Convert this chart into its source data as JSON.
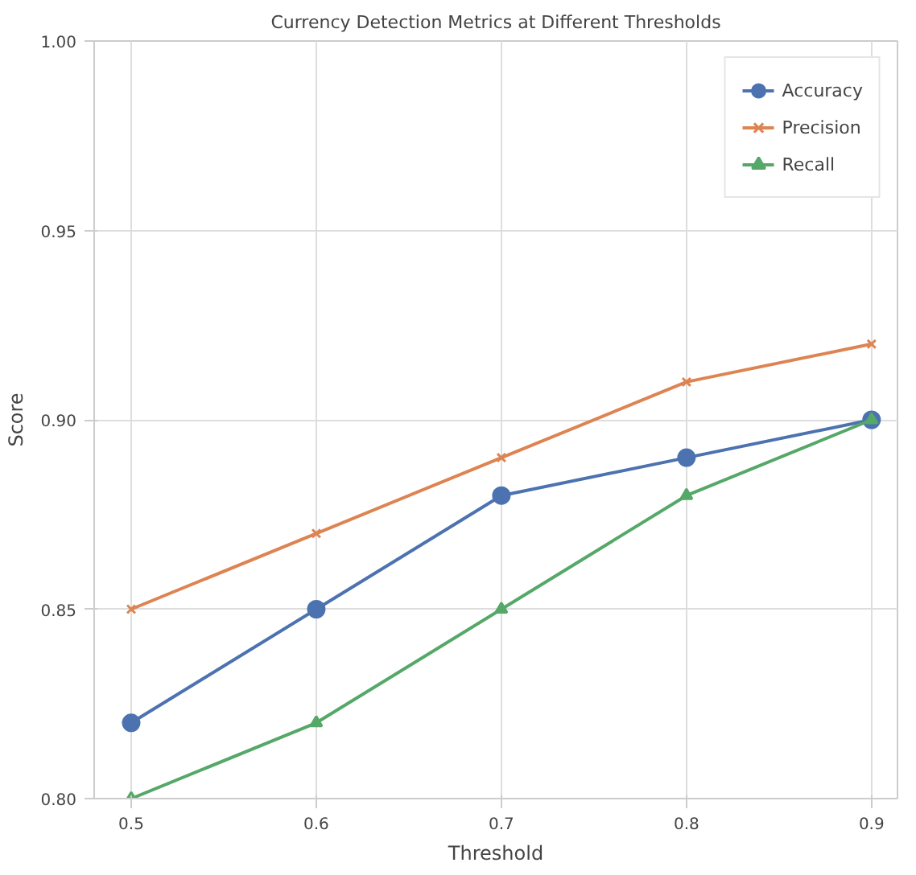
{
  "chart_data": {
    "type": "line",
    "title": "Currency Detection Metrics at Different Thresholds",
    "xlabel": "Threshold",
    "ylabel": "Score",
    "x": [
      0.5,
      0.6,
      0.7,
      0.8,
      0.9
    ],
    "series": [
      {
        "name": "Accuracy",
        "color": "#4c72b0",
        "values": [
          0.82,
          0.85,
          0.88,
          0.89,
          0.9
        ],
        "marker": "circle"
      },
      {
        "name": "Precision",
        "color": "#dd8452",
        "values": [
          0.85,
          0.87,
          0.89,
          0.91,
          0.92
        ],
        "marker": "cross"
      },
      {
        "name": "Recall",
        "color": "#55a868",
        "values": [
          0.8,
          0.82,
          0.85,
          0.88,
          0.9
        ],
        "marker": "triangle"
      }
    ],
    "xlim": [
      0.48,
      0.914
    ],
    "ylim": [
      0.8,
      1.0
    ],
    "xticks": [
      0.5,
      0.6,
      0.7,
      0.8,
      0.9
    ],
    "yticks": [
      {
        "value": 0.8,
        "label": "0.80"
      },
      {
        "value": 0.85,
        "label": "0.85"
      },
      {
        "value": 0.9,
        "label": "0.90"
      },
      {
        "value": 0.95,
        "label": "0.95"
      },
      {
        "value": 1.0,
        "label": "1.00"
      }
    ],
    "grid": true,
    "legend": "top right",
    "line_style": "solid"
  }
}
